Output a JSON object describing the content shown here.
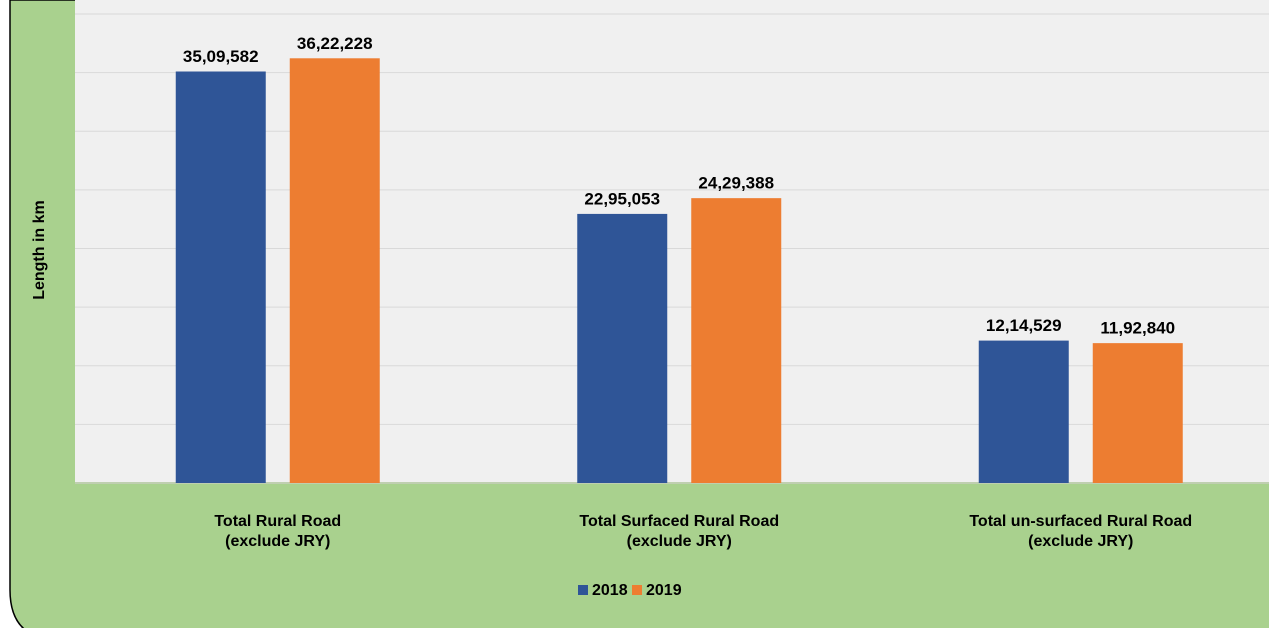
{
  "chart_data": {
    "type": "bar",
    "y_label": "Length in km",
    "categories": [
      [
        "Total Rural Road",
        "(exclude JRY)"
      ],
      [
        "Total Surfaced  Rural Road",
        "(exclude JRY)"
      ],
      [
        "Total un-surfaced  Rural Road",
        "(exclude  JRY)"
      ]
    ],
    "series": [
      {
        "name": "2018",
        "color": "#2f5597",
        "values": [
          3509582,
          2295053,
          1214529
        ],
        "value_labels": [
          "35,09,582",
          "22,95,053",
          "12,14,529"
        ]
      },
      {
        "name": "2019",
        "color": "#ed7d31",
        "values": [
          3622228,
          2429388,
          1192840
        ],
        "value_labels": [
          "36,22,228",
          "24,29,388",
          "11,92,840"
        ]
      }
    ],
    "ylim": [
      0,
      4000000
    ],
    "yticks": [
      0,
      500000,
      1000000,
      1500000,
      2000000,
      2500000,
      3000000,
      3500000,
      4000000
    ],
    "grid": true,
    "legend": "bottom"
  }
}
